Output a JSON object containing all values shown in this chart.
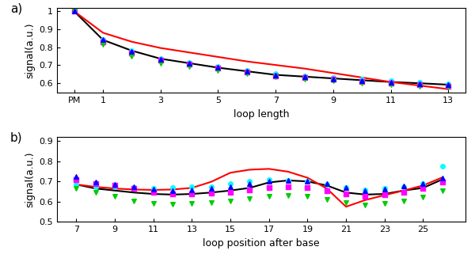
{
  "panel_a": {
    "x_all": [
      0,
      1,
      2,
      3,
      4,
      5,
      6,
      7,
      8,
      9,
      10,
      11,
      12,
      13
    ],
    "black_line": [
      1.0,
      0.84,
      0.78,
      0.735,
      0.71,
      0.685,
      0.665,
      0.645,
      0.635,
      0.625,
      0.615,
      0.605,
      0.598,
      0.59
    ],
    "red_line": [
      1.0,
      0.88,
      0.83,
      0.795,
      0.77,
      0.745,
      0.72,
      0.7,
      0.68,
      0.655,
      0.63,
      0.605,
      0.585,
      0.565
    ],
    "cyan_dots": [
      1.0,
      0.84,
      0.78,
      0.735,
      0.715,
      0.69,
      0.67,
      0.65,
      0.64,
      0.63,
      0.62,
      0.61,
      0.602,
      0.595
    ],
    "magenta_squares": [
      1.0,
      0.83,
      0.765,
      0.725,
      0.705,
      0.682,
      0.66,
      0.64,
      0.63,
      0.62,
      0.608,
      0.598,
      0.59,
      0.582
    ],
    "green_triangles": [
      1.0,
      0.815,
      0.75,
      0.71,
      0.69,
      0.67,
      0.65,
      0.635,
      0.622,
      0.61,
      0.6,
      0.59,
      0.583,
      0.575
    ],
    "blue_triangles": [
      1.0,
      0.84,
      0.775,
      0.73,
      0.71,
      0.688,
      0.665,
      0.645,
      0.635,
      0.623,
      0.614,
      0.604,
      0.595,
      0.588
    ],
    "xtick_positions": [
      0,
      1,
      3,
      5,
      7,
      9,
      11,
      13
    ],
    "xtick_labels": [
      "PM",
      "1",
      "3",
      "5",
      "7",
      "9",
      "11",
      "13"
    ],
    "xlabel": "loop length",
    "ylabel": "signal(a.u.)",
    "ylim": [
      0.545,
      1.02
    ],
    "yticks": [
      0.6,
      0.7,
      0.8,
      0.9,
      1.0
    ],
    "ytick_labels": [
      "0.6",
      "0.7",
      "0.8",
      "0.9",
      "1"
    ]
  },
  "panel_b": {
    "x_data": [
      7,
      8,
      9,
      10,
      11,
      12,
      13,
      14,
      15,
      16,
      17,
      18,
      19,
      20,
      21,
      22,
      23,
      24,
      25,
      26
    ],
    "black_line": [
      0.685,
      0.665,
      0.655,
      0.645,
      0.638,
      0.635,
      0.638,
      0.645,
      0.655,
      0.668,
      0.695,
      0.705,
      0.7,
      0.68,
      0.645,
      0.635,
      0.638,
      0.655,
      0.668,
      0.71
    ],
    "red_line": [
      0.685,
      0.673,
      0.665,
      0.66,
      0.658,
      0.66,
      0.668,
      0.698,
      0.743,
      0.758,
      0.762,
      0.748,
      0.718,
      0.665,
      0.575,
      0.608,
      0.632,
      0.655,
      0.68,
      0.72
    ],
    "cyan_dots": [
      0.685,
      0.675,
      0.675,
      0.67,
      0.665,
      0.67,
      0.672,
      0.675,
      0.69,
      0.7,
      0.71,
      0.705,
      0.7,
      0.685,
      0.668,
      0.658,
      0.665,
      0.675,
      0.688,
      0.775
    ],
    "magenta_squares": [
      0.71,
      0.688,
      0.68,
      0.665,
      0.645,
      0.638,
      0.638,
      0.642,
      0.648,
      0.658,
      0.67,
      0.672,
      0.67,
      0.655,
      0.638,
      0.625,
      0.635,
      0.648,
      0.665,
      0.698
    ],
    "green_triangles": [
      0.665,
      0.645,
      0.625,
      0.605,
      0.59,
      0.588,
      0.59,
      0.595,
      0.603,
      0.615,
      0.628,
      0.63,
      0.625,
      0.61,
      0.595,
      0.585,
      0.592,
      0.605,
      0.622,
      0.655
    ],
    "blue_triangles": [
      0.726,
      0.698,
      0.685,
      0.672,
      0.66,
      0.655,
      0.658,
      0.665,
      0.675,
      0.688,
      0.702,
      0.705,
      0.7,
      0.688,
      0.668,
      0.655,
      0.662,
      0.678,
      0.69,
      0.715
    ],
    "xlabel": "loop position after base",
    "ylabel": "signal(a.u.)",
    "ylim": [
      0.5,
      0.92
    ],
    "yticks": [
      0.5,
      0.6,
      0.7,
      0.8,
      0.9
    ],
    "ytick_labels": [
      "0.5",
      "0.6",
      "0.7",
      "0.8",
      "0.9"
    ],
    "xticks": [
      7,
      9,
      11,
      13,
      15,
      17,
      19,
      21,
      23,
      25
    ],
    "xtick_labels": [
      "7",
      "9",
      "11",
      "13",
      "15",
      "17",
      "19",
      "21",
      "23",
      "25"
    ]
  },
  "colors": {
    "black": "#000000",
    "red": "#ff0000",
    "cyan": "#00ffff",
    "magenta": "#ff00ff",
    "green": "#00cc00",
    "blue": "#0000ff"
  }
}
